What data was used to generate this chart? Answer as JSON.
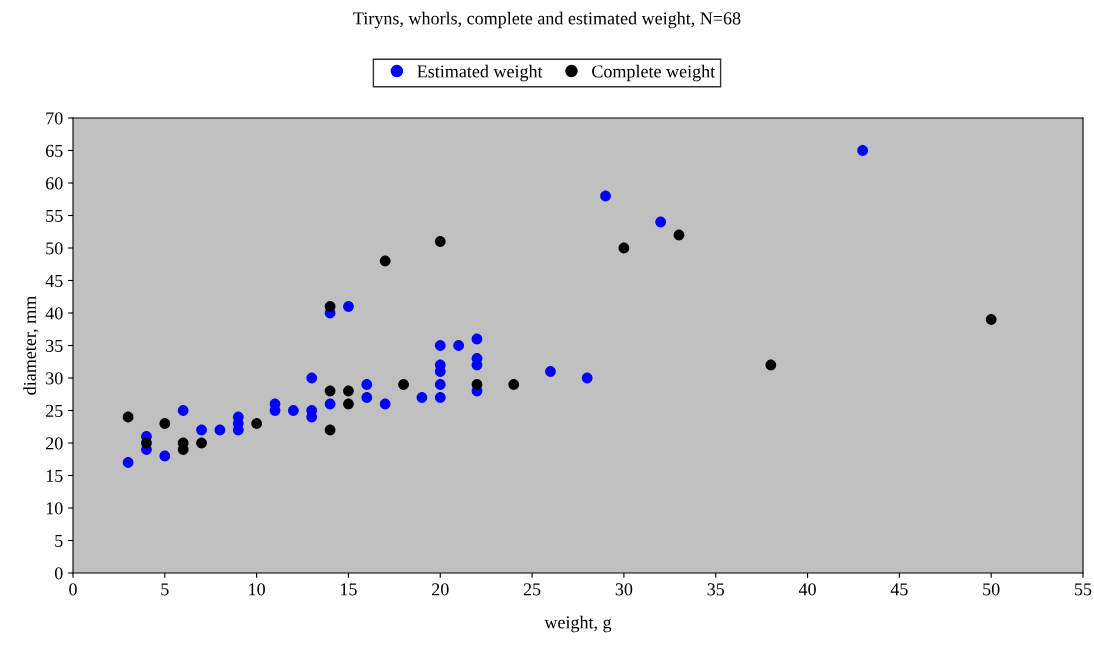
{
  "chart_data": {
    "type": "scatter",
    "title": "Tiryns, whorls, complete and estimated weight, N=68",
    "xlabel": "weight, g",
    "ylabel": "diameter, mm",
    "xlim": [
      0,
      55
    ],
    "xticks": [
      0,
      5,
      10,
      15,
      20,
      25,
      30,
      35,
      40,
      45,
      50,
      55
    ],
    "ylim": [
      0,
      70
    ],
    "yticks": [
      0,
      5,
      10,
      15,
      20,
      25,
      30,
      35,
      40,
      45,
      50,
      55,
      60,
      65,
      70
    ],
    "grid": false,
    "legend": "top",
    "marker": "circle",
    "series": [
      {
        "name": "Estimated weight",
        "color": "#0000ff",
        "x": [
          3,
          4,
          4,
          5,
          6,
          7,
          8,
          9,
          9,
          9,
          11,
          11,
          12,
          13,
          13,
          13,
          14,
          14,
          15,
          16,
          16,
          17,
          19,
          20,
          20,
          20,
          20,
          20,
          21,
          22,
          22,
          22,
          22,
          26,
          28,
          29,
          32,
          43
        ],
        "values": [
          17,
          21,
          19,
          18,
          25,
          22,
          22,
          24,
          23,
          22,
          26,
          25,
          25,
          30,
          25,
          24,
          40,
          26,
          41,
          29,
          27,
          26,
          27,
          35,
          32,
          31,
          29,
          27,
          35,
          36,
          33,
          32,
          28,
          31,
          30,
          58,
          54,
          65
        ]
      },
      {
        "name": "Complete weight",
        "color": "#000000",
        "x": [
          3,
          4,
          5,
          6,
          6,
          7,
          10,
          14,
          14,
          14,
          15,
          15,
          17,
          18,
          20,
          22,
          24,
          30,
          33,
          38,
          50
        ],
        "values": [
          24,
          20,
          23,
          20,
          19,
          20,
          23,
          41,
          28,
          22,
          28,
          26,
          48,
          29,
          51,
          29,
          29,
          50,
          52,
          32,
          39
        ]
      }
    ]
  }
}
